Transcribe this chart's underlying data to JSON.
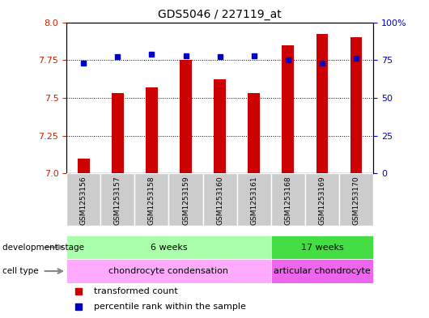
{
  "title": "GDS5046 / 227119_at",
  "categories": [
    "GSM1253156",
    "GSM1253157",
    "GSM1253158",
    "GSM1253159",
    "GSM1253160",
    "GSM1253161",
    "GSM1253168",
    "GSM1253169",
    "GSM1253170"
  ],
  "bar_values": [
    7.1,
    7.53,
    7.57,
    7.75,
    7.62,
    7.53,
    7.85,
    7.92,
    7.9
  ],
  "dot_values": [
    73,
    77,
    79,
    78,
    77,
    78,
    75,
    73,
    76
  ],
  "ylim_left": [
    7.0,
    8.0
  ],
  "ylim_right": [
    0,
    100
  ],
  "yticks_left": [
    7.0,
    7.25,
    7.5,
    7.75,
    8.0
  ],
  "yticks_right": [
    0,
    25,
    50,
    75,
    100
  ],
  "bar_color": "#CC0000",
  "dot_color": "#0000CC",
  "bar_width": 0.35,
  "groups": [
    {
      "label": "6 weeks",
      "start": 0,
      "end": 6,
      "color": "#AAFFAA"
    },
    {
      "label": "17 weeks",
      "start": 6,
      "end": 9,
      "color": "#44DD44"
    }
  ],
  "cell_types": [
    {
      "label": "chondrocyte condensation",
      "start": 0,
      "end": 6,
      "color": "#FFAAFF"
    },
    {
      "label": "articular chondrocyte",
      "start": 6,
      "end": 9,
      "color": "#EE66EE"
    }
  ],
  "dev_stage_label": "development stage",
  "cell_type_label": "cell type",
  "legend_bar": "transformed count",
  "legend_dot": "percentile rank within the sample",
  "tick_label_color_left": "#CC2200",
  "tick_label_color_right": "#0000CC",
  "xtick_bg_color": "#CCCCCC"
}
